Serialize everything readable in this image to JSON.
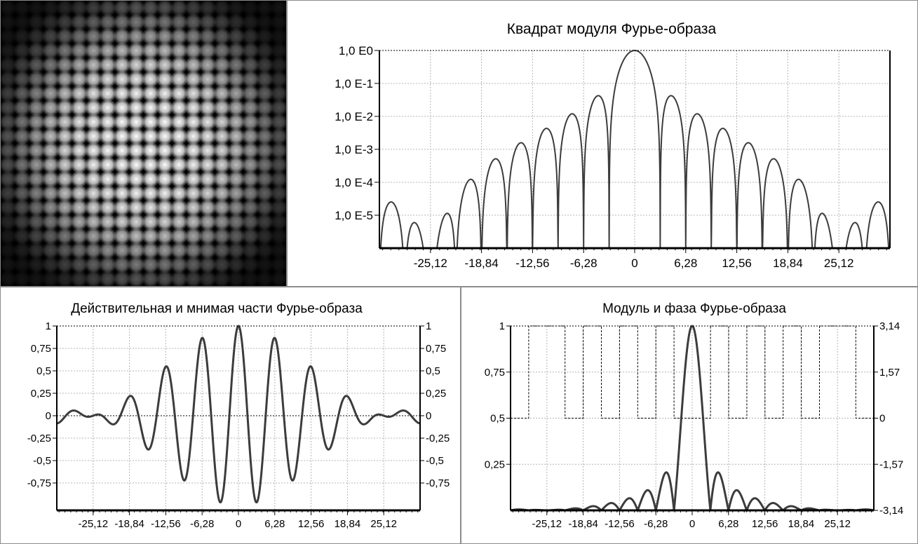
{
  "colors": {
    "curve": "#3c3c3c",
    "grid": "#b4b4b4",
    "frame": "#000000",
    "background": "#ffffff"
  },
  "image": {
    "grid_rows": 20,
    "grid_cols": 20
  },
  "chart_data": [
    {
      "id": "power",
      "type": "line",
      "title": "Квадрат модуля Фурье-образа",
      "scale": "log",
      "xlim": [
        -31.4,
        31.4
      ],
      "ylim": [
        -6,
        0
      ],
      "x_ticks": [
        -25.12,
        -18.84,
        -12.56,
        -6.28,
        0,
        6.28,
        12.56,
        18.84,
        25.12
      ],
      "x_tick_labels": [
        "-25,12",
        "-18,84",
        "-12,56",
        "-6,28",
        "0",
        "6,28",
        "12,56",
        "18,84",
        "25,12"
      ],
      "y_ticks": [
        0,
        -1,
        -2,
        -3,
        -4,
        -5
      ],
      "y_tick_labels": [
        "1,0 E0",
        "1,0 E-1",
        "1,0 E-2",
        "1,0 E-3",
        "1,0 E-4",
        "1,0 E-5"
      ],
      "grid": true,
      "series": [
        {
          "style": "solid"
        }
      ]
    },
    {
      "id": "realimag",
      "type": "line",
      "title": "Действительная и мнимая части Фурье-образа",
      "xlim": [
        -31.4,
        31.4
      ],
      "ylim": [
        -1,
        1
      ],
      "x_ticks": [
        -25.12,
        -18.84,
        -12.56,
        -6.28,
        0,
        6.28,
        12.56,
        18.84,
        25.12
      ],
      "x_tick_labels": [
        "-25,12",
        "-18,84",
        "-12,56",
        "-6,28",
        "0",
        "6,28",
        "12,56",
        "18,84",
        "25,12"
      ],
      "y_ticks": [
        1,
        0.75,
        0.5,
        0.25,
        0,
        -0.25,
        -0.5,
        -0.75
      ],
      "y_tick_labels": [
        "1",
        "0,75",
        "0,5",
        "0,25",
        "0",
        "-0,25",
        "-0,5",
        "-0,75"
      ],
      "y2_tick_labels": [
        "1",
        "0,75",
        "0,5",
        "0,25",
        "0",
        "-0,25",
        "-0,5",
        "-0,75"
      ],
      "grid": true,
      "series": [
        {
          "style": "solid"
        }
      ]
    },
    {
      "id": "modphase",
      "type": "line",
      "title": "Модуль и фаза Фурье-образа",
      "xlim": [
        -31.4,
        31.4
      ],
      "ylim": [
        0,
        1
      ],
      "y2lim": [
        -3.14,
        3.14
      ],
      "x_ticks": [
        -25.12,
        -18.84,
        -12.56,
        -6.28,
        0,
        6.28,
        12.56,
        18.84,
        25.12
      ],
      "x_tick_labels": [
        "-25,12",
        "-18,84",
        "-12,56",
        "-6,28",
        "0",
        "6,28",
        "12,56",
        "18,84",
        "25,12"
      ],
      "y_ticks": [
        1,
        0.75,
        0.5,
        0.25
      ],
      "y_tick_labels": [
        "1",
        "0,75",
        "0,5",
        "0,25"
      ],
      "y2_ticks": [
        3.14,
        1.57,
        0,
        -1.57,
        -3.14
      ],
      "y2_tick_labels": [
        "3,14",
        "1,57",
        "0",
        "-1,57",
        "-3,14"
      ],
      "grid": true,
      "series": [
        {
          "style": "solid",
          "axis": "left"
        },
        {
          "style": "dashed",
          "axis": "right"
        }
      ]
    }
  ]
}
